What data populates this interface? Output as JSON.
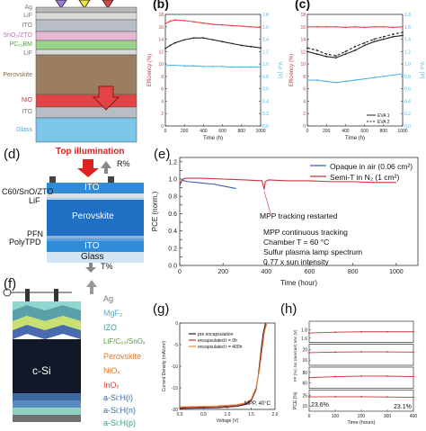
{
  "panels": {
    "a": {
      "layers": [
        "Ag",
        "LiF",
        "ITO",
        "SnO₂/ZTO",
        "PC₆₁BM",
        "LiF",
        "Perovskite",
        "NiO",
        "ITO",
        "Glass"
      ],
      "colors": {
        "ag": "#b8b8b8",
        "lif": "#d9d9d9",
        "ito": "#b9bec6",
        "sno": "#e5b8d4",
        "pcbm": "#9ad48a",
        "perov": "#9a7e5f",
        "nio": "#e04444",
        "glass": "#7cc7e8"
      }
    },
    "b": {
      "label": "(b)",
      "xlabel": "Time (h)",
      "ylabel_left": "Efficiency (%)",
      "ylabel_right": "Vₒc (V)"
    },
    "c": {
      "label": "(c)",
      "xlabel": "Time (h)",
      "ylabel_left": "Efficiency (%)",
      "ylabel_right": "Vₒc (V)",
      "legend": [
        "EVA 1",
        "EVA 2"
      ]
    },
    "d": {
      "label": "(d)",
      "top_illumination": "Top illumination",
      "reflect": "R%",
      "transmit": "T%",
      "layers": {
        "ito_top": "ITO",
        "perovskite": "Perovskite",
        "ito_bottom": "ITO",
        "glass": "Glass"
      },
      "side_labels": [
        "C60/SnO/ZTO",
        "LiF",
        "PFN",
        "PolyTPD"
      ]
    },
    "e": {
      "label": "(e)",
      "xlabel": "Time (hour)",
      "ylabel": "PCE (norm.)",
      "legend_1": "Opaque in air (0.06 cm²)",
      "legend_2": "Semi-T in N₂ (1 cm²)",
      "annotation_mpp": "MPP tracking restarted",
      "conditions": [
        "MPP continuous tracking",
        "Chamber T = 60 °C",
        "Sulfur plasma lamp spectrum",
        "0.77 x sun intensity"
      ]
    },
    "f": {
      "label": "(f)",
      "cell": "c-Si",
      "layers": [
        "Ag",
        "MgF₂",
        "IZO",
        "LiF/C₆₀/SnOₓ",
        "Perovskite",
        "NiOₓ",
        "InOₓ",
        "a-Si:H(i)",
        "a-Si:H(n)",
        "a-Si:H(p)"
      ]
    },
    "g": {
      "label": "(g)",
      "ylabel": "Current Density (mA/cm²)",
      "xlabel": "Voltage (V)",
      "legend": [
        "pre encapsulation",
        "encapsulated t = 0h",
        "encapsulated t = 400h"
      ],
      "annotation": "MPP, 40°C"
    },
    "h": {
      "label": "(h)",
      "xlabel": "Time (hours)",
      "ylabel_pce": "PCE (%)",
      "ylabel_mid": "FF (%) Jsc (mA/cm²) Voc (V)",
      "annotation_1": "23.6%",
      "annotation_2": "23.1%"
    }
  },
  "chart_data": [
    {
      "panel": "b",
      "type": "line",
      "xlabel": "Time (h)",
      "ylabel": "Efficiency (%)",
      "xlim": [
        0,
        1000
      ],
      "ylim": [
        0,
        18
      ],
      "y2lim": [
        0,
        1.8
      ],
      "x_ticks": [
        0,
        200,
        400,
        600,
        800,
        1000
      ],
      "y_ticks": [
        0,
        2,
        4,
        6,
        8,
        10,
        12,
        14,
        16,
        18
      ],
      "y2_ticks": [
        0,
        0.2,
        0.4,
        0.6,
        0.8,
        1.0,
        1.2,
        1.4,
        1.6,
        1.8
      ],
      "series": [
        {
          "x": [
            0,
            50,
            100,
            200,
            300,
            400,
            500,
            600,
            700,
            800,
            900,
            1000
          ],
          "values": [
            16.5,
            16.9,
            17.1,
            17.0,
            16.8,
            16.6,
            16.4,
            16.3,
            16.2,
            16.1,
            16.0,
            15.9
          ],
          "color": "#e9454a",
          "axis": "left"
        },
        {
          "x": [
            0,
            50,
            100,
            200,
            300,
            400,
            500,
            600,
            700,
            800,
            900,
            1000
          ],
          "values": [
            12.5,
            13.0,
            13.4,
            13.9,
            14.2,
            14.2,
            13.9,
            13.6,
            13.3,
            13.0,
            12.8,
            12.6
          ],
          "color": "#222222",
          "axis": "left"
        },
        {
          "x": [
            0,
            50,
            100,
            200,
            300,
            400,
            500,
            600,
            700,
            800,
            900,
            1000
          ],
          "values": [
            0.97,
            0.98,
            0.98,
            0.97,
            0.97,
            0.96,
            0.96,
            0.96,
            0.95,
            0.95,
            0.95,
            0.95
          ],
          "color": "#4fb4e0",
          "axis": "right"
        }
      ]
    },
    {
      "panel": "c",
      "type": "line",
      "xlabel": "Time (h)",
      "ylabel": "Efficiency (%)",
      "xlim": [
        0,
        1000
      ],
      "ylim": [
        0,
        18
      ],
      "y2lim": [
        0,
        1.8
      ],
      "x_ticks": [
        0,
        200,
        400,
        600,
        800,
        1000
      ],
      "y_ticks": [
        0,
        2,
        4,
        6,
        8,
        10,
        12,
        14,
        16,
        18
      ],
      "y2_ticks": [
        0,
        0.2,
        0.4,
        0.6,
        0.8,
        1.0,
        1.2,
        1.4,
        1.6,
        1.8
      ],
      "series": [
        {
          "name": "EVA 1",
          "x": [
            0,
            100,
            200,
            300,
            400,
            500,
            600,
            700,
            800,
            900,
            1000
          ],
          "values": [
            12.0,
            11.6,
            11.2,
            11.0,
            11.6,
            12.2,
            13.0,
            13.6,
            14.0,
            14.4,
            14.6
          ],
          "color": "#222222",
          "axis": "left"
        },
        {
          "name": "EVA 2",
          "x": [
            0,
            100,
            200,
            300,
            400,
            500,
            600,
            700,
            800,
            900,
            1000
          ],
          "values": [
            12.6,
            12.2,
            11.6,
            11.3,
            12.0,
            12.8,
            13.4,
            14.0,
            14.4,
            14.8,
            15.1
          ],
          "color": "#222222",
          "axis": "left",
          "dashed": true
        },
        {
          "x": [
            0,
            100,
            200,
            300,
            400,
            500,
            600,
            700,
            800,
            900,
            1000
          ],
          "values": [
            1.6,
            1.6,
            1.6,
            1.6,
            1.59,
            1.6,
            1.59,
            1.6,
            1.6,
            1.59,
            1.6
          ],
          "color": "#e9454a",
          "axis": "right"
        },
        {
          "x": [
            0,
            100,
            200,
            300,
            400,
            500,
            600,
            700,
            800,
            900,
            1000
          ],
          "values": [
            0.74,
            0.74,
            0.72,
            0.7,
            0.72,
            0.74,
            0.76,
            0.78,
            0.8,
            0.82,
            0.84
          ],
          "color": "#4fb4e0",
          "axis": "right"
        }
      ]
    },
    {
      "panel": "e",
      "type": "line",
      "xlabel": "Time (hour)",
      "ylabel": "PCE (norm.)",
      "xlim": [
        0,
        1100
      ],
      "ylim": [
        0,
        1.25
      ],
      "x_ticks": [
        0,
        200,
        400,
        600,
        800,
        1000
      ],
      "y_ticks": [
        0.0,
        0.1,
        0.2,
        0.3,
        0.4,
        0.5,
        0.6,
        0.7,
        0.8,
        0.9,
        1.0,
        1.1,
        1.2
      ],
      "series": [
        {
          "name": "Opaque in air (0.06 cm²)",
          "x": [
            0,
            10,
            20,
            40,
            80,
            120,
            160,
            200,
            240,
            260
          ],
          "values": [
            0.92,
            0.99,
            0.98,
            0.97,
            0.96,
            0.95,
            0.94,
            0.92,
            0.9,
            0.89
          ],
          "color": "#3a5fb0"
        },
        {
          "name": "Semi-T in N₂ (1 cm²)",
          "x": [
            0,
            15,
            30,
            100,
            200,
            300,
            380,
            390,
            395,
            410,
            500,
            600,
            700,
            800,
            900,
            1000
          ],
          "values": [
            0.95,
            1.0,
            1.01,
            1.01,
            1.0,
            0.99,
            0.98,
            0.88,
            0.97,
            0.99,
            0.98,
            0.98,
            0.97,
            0.97,
            0.96,
            0.96
          ],
          "color": "#c8343b"
        }
      ]
    },
    {
      "panel": "g",
      "type": "line",
      "xlabel": "Voltage (V)",
      "ylabel": "Current Density (mA/cm²)",
      "xlim": [
        0,
        2.0
      ],
      "ylim": [
        -20,
        0
      ],
      "x_ticks": [
        0,
        0.5,
        1.0,
        1.5,
        2.0
      ],
      "y_ticks": [
        -20,
        -15,
        -10,
        -5,
        0
      ],
      "series": [
        {
          "name": "pre encapsulation",
          "x": [
            0,
            0.4,
            0.8,
            1.2,
            1.4,
            1.5,
            1.6,
            1.65,
            1.7,
            1.75,
            1.8
          ],
          "values": [
            -19.8,
            -19.7,
            -19.6,
            -19.3,
            -18.8,
            -18.0,
            -15.5,
            -12.0,
            -7.0,
            -2.5,
            0.0
          ],
          "color": "#222222"
        },
        {
          "name": "encapsulated t = 0h",
          "x": [
            0,
            0.4,
            0.8,
            1.2,
            1.4,
            1.5,
            1.6,
            1.66,
            1.72,
            1.77,
            1.82
          ],
          "values": [
            -19.6,
            -19.5,
            -19.4,
            -19.1,
            -18.6,
            -17.8,
            -15.2,
            -11.5,
            -6.5,
            -2.2,
            0.0
          ],
          "color": "#c8343b"
        },
        {
          "name": "encapsulated t = 400h",
          "x": [
            0,
            0.4,
            0.8,
            1.2,
            1.4,
            1.5,
            1.6,
            1.67,
            1.73,
            1.78,
            1.83
          ],
          "values": [
            -19.4,
            -19.3,
            -19.2,
            -18.9,
            -18.4,
            -17.6,
            -15.0,
            -11.2,
            -6.2,
            -2.0,
            0.0
          ],
          "color": "#e9883c"
        }
      ]
    },
    {
      "panel": "h",
      "type": "line",
      "xlabel": "Time (hours)",
      "xlim": [
        0,
        400
      ],
      "x_ticks": [
        0,
        100,
        200,
        300,
        400
      ],
      "subplots": [
        {
          "ylabel": "Voc (V)",
          "ylim": [
            1.5,
            2.0
          ],
          "y_ticks": [
            1.6,
            1.8
          ],
          "values": [
            1.72,
            1.74,
            1.75,
            1.75,
            1.75
          ]
        },
        {
          "ylabel": "Jsc (mA/cm²)",
          "ylim": [
            14,
            22
          ],
          "y_ticks": [
            16,
            20
          ],
          "values": [
            18.8,
            19.0,
            19.1,
            19.1,
            19.0
          ]
        },
        {
          "ylabel": "FF (%)",
          "ylim": [
            50,
            90
          ],
          "y_ticks": [
            60,
            80
          ],
          "values": [
            70,
            72,
            73,
            73,
            72
          ]
        },
        {
          "ylabel": "PCE (%)",
          "ylim": [
            10,
            30
          ],
          "y_ticks": [
            15,
            25
          ],
          "values": [
            23.6,
            23.7,
            23.7,
            23.5,
            23.1
          ]
        }
      ],
      "x": [
        0,
        100,
        200,
        300,
        400
      ],
      "color": "#c8343b"
    }
  ]
}
